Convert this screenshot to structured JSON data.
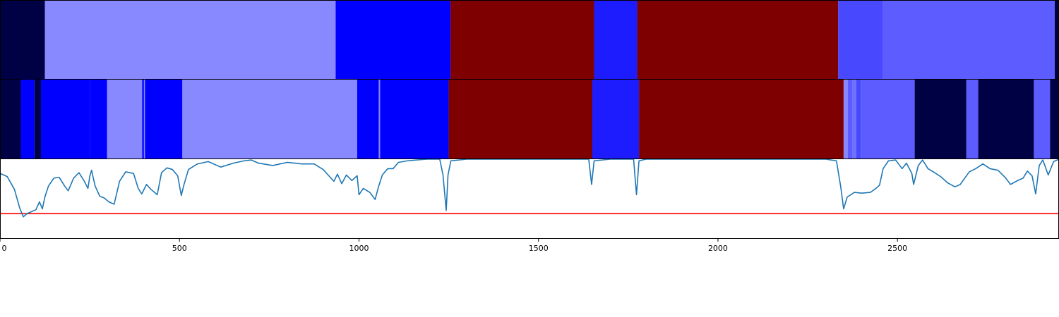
{
  "chart_data": [
    {
      "type": "heatmap",
      "panel": "top-strip",
      "xlim": [
        0,
        2950
      ],
      "segments": [
        {
          "start": 0,
          "end": 125,
          "color": "#000045"
        },
        {
          "start": 125,
          "end": 935,
          "color": "#8888ff"
        },
        {
          "start": 935,
          "end": 1255,
          "color": "#0000ff"
        },
        {
          "start": 1255,
          "end": 1655,
          "color": "#7f0000"
        },
        {
          "start": 1655,
          "end": 1775,
          "color": "#1c1cff"
        },
        {
          "start": 1775,
          "end": 2335,
          "color": "#7f0000"
        },
        {
          "start": 2335,
          "end": 2460,
          "color": "#4848ff"
        },
        {
          "start": 2460,
          "end": 2938,
          "color": "#5c5cff"
        },
        {
          "start": 2938,
          "end": 2950,
          "color": "#000045"
        }
      ]
    },
    {
      "type": "heatmap",
      "panel": "middle-strip",
      "xlim": [
        0,
        2950
      ],
      "segments": [
        {
          "start": 0,
          "end": 58,
          "color": "#000045"
        },
        {
          "start": 58,
          "end": 96,
          "color": "#0000ff"
        },
        {
          "start": 96,
          "end": 114,
          "color": "#000045"
        },
        {
          "start": 114,
          "end": 250,
          "color": "#0000ff"
        },
        {
          "start": 250,
          "end": 298,
          "color": "#0000ff"
        },
        {
          "start": 298,
          "end": 396,
          "color": "#8888ff"
        },
        {
          "start": 396,
          "end": 401,
          "color": "#0000ff"
        },
        {
          "start": 401,
          "end": 404,
          "color": "#8888ff"
        },
        {
          "start": 404,
          "end": 508,
          "color": "#0000ff"
        },
        {
          "start": 508,
          "end": 995,
          "color": "#8888ff"
        },
        {
          "start": 995,
          "end": 1055,
          "color": "#0000ff"
        },
        {
          "start": 1055,
          "end": 1059,
          "color": "#8888ff"
        },
        {
          "start": 1059,
          "end": 1250,
          "color": "#0000ff"
        },
        {
          "start": 1250,
          "end": 1650,
          "color": "#7f0000"
        },
        {
          "start": 1650,
          "end": 1780,
          "color": "#1c1cff"
        },
        {
          "start": 1780,
          "end": 2350,
          "color": "#7f0000"
        },
        {
          "start": 2350,
          "end": 2362,
          "color": "#8888ff"
        },
        {
          "start": 2362,
          "end": 2375,
          "color": "#5c5cff"
        },
        {
          "start": 2375,
          "end": 2385,
          "color": "#7070ff"
        },
        {
          "start": 2385,
          "end": 2398,
          "color": "#4848ff"
        },
        {
          "start": 2398,
          "end": 2548,
          "color": "#5c5cff"
        },
        {
          "start": 2548,
          "end": 2692,
          "color": "#000045"
        },
        {
          "start": 2692,
          "end": 2725,
          "color": "#5c5cff"
        },
        {
          "start": 2725,
          "end": 2880,
          "color": "#000045"
        },
        {
          "start": 2880,
          "end": 2925,
          "color": "#5c5cff"
        },
        {
          "start": 2925,
          "end": 2950,
          "color": "#000045"
        }
      ]
    },
    {
      "type": "line",
      "panel": "bottom-line",
      "xlim": [
        0,
        2950
      ],
      "ylim": [
        0,
        1
      ],
      "line_color": "#1f77b4",
      "threshold": {
        "value": 0.31,
        "color": "#ff0000"
      },
      "x_ticks": [
        "0",
        "500",
        "1000",
        "1500",
        "2000",
        "2500"
      ],
      "x_tick_values": [
        0,
        500,
        1000,
        1500,
        2000,
        2500
      ],
      "points": [
        [
          0,
          0.82
        ],
        [
          20,
          0.78
        ],
        [
          40,
          0.62
        ],
        [
          55,
          0.38
        ],
        [
          65,
          0.27
        ],
        [
          75,
          0.31
        ],
        [
          90,
          0.34
        ],
        [
          100,
          0.36
        ],
        [
          110,
          0.46
        ],
        [
          118,
          0.37
        ],
        [
          125,
          0.52
        ],
        [
          135,
          0.66
        ],
        [
          150,
          0.76
        ],
        [
          165,
          0.77
        ],
        [
          180,
          0.66
        ],
        [
          190,
          0.6
        ],
        [
          205,
          0.76
        ],
        [
          220,
          0.83
        ],
        [
          235,
          0.72
        ],
        [
          245,
          0.63
        ],
        [
          250,
          0.78
        ],
        [
          255,
          0.86
        ],
        [
          265,
          0.66
        ],
        [
          278,
          0.53
        ],
        [
          290,
          0.51
        ],
        [
          303,
          0.46
        ],
        [
          318,
          0.43
        ],
        [
          333,
          0.72
        ],
        [
          350,
          0.84
        ],
        [
          372,
          0.82
        ],
        [
          385,
          0.63
        ],
        [
          395,
          0.56
        ],
        [
          408,
          0.68
        ],
        [
          420,
          0.62
        ],
        [
          438,
          0.55
        ],
        [
          450,
          0.83
        ],
        [
          465,
          0.89
        ],
        [
          480,
          0.87
        ],
        [
          495,
          0.79
        ],
        [
          505,
          0.54
        ],
        [
          512,
          0.67
        ],
        [
          525,
          0.87
        ],
        [
          550,
          0.94
        ],
        [
          580,
          0.97
        ],
        [
          615,
          0.9
        ],
        [
          650,
          0.95
        ],
        [
          680,
          0.98
        ],
        [
          700,
          0.99
        ],
        [
          720,
          0.95
        ],
        [
          760,
          0.92
        ],
        [
          800,
          0.96
        ],
        [
          840,
          0.94
        ],
        [
          875,
          0.94
        ],
        [
          900,
          0.87
        ],
        [
          920,
          0.77
        ],
        [
          930,
          0.72
        ],
        [
          940,
          0.81
        ],
        [
          952,
          0.69
        ],
        [
          965,
          0.8
        ],
        [
          980,
          0.73
        ],
        [
          995,
          0.79
        ],
        [
          1000,
          0.55
        ],
        [
          1012,
          0.63
        ],
        [
          1030,
          0.58
        ],
        [
          1045,
          0.49
        ],
        [
          1055,
          0.66
        ],
        [
          1065,
          0.8
        ],
        [
          1080,
          0.88
        ],
        [
          1095,
          0.88
        ],
        [
          1110,
          0.96
        ],
        [
          1135,
          0.98
        ],
        [
          1160,
          0.99
        ],
        [
          1190,
          1.0
        ],
        [
          1225,
          1.0
        ],
        [
          1234,
          0.8
        ],
        [
          1243,
          0.35
        ],
        [
          1248,
          0.8
        ],
        [
          1256,
          0.98
        ],
        [
          1300,
          1.0
        ],
        [
          1400,
          1.0
        ],
        [
          1500,
          1.0
        ],
        [
          1600,
          1.0
        ],
        [
          1640,
          1.0
        ],
        [
          1648,
          0.68
        ],
        [
          1655,
          0.98
        ],
        [
          1700,
          1.0
        ],
        [
          1765,
          1.0
        ],
        [
          1773,
          0.55
        ],
        [
          1780,
          0.98
        ],
        [
          1800,
          1.0
        ],
        [
          1900,
          1.0
        ],
        [
          2000,
          1.0
        ],
        [
          2100,
          1.0
        ],
        [
          2200,
          1.0
        ],
        [
          2300,
          1.0
        ],
        [
          2330,
          0.98
        ],
        [
          2342,
          0.65
        ],
        [
          2350,
          0.37
        ],
        [
          2360,
          0.52
        ],
        [
          2380,
          0.58
        ],
        [
          2400,
          0.57
        ],
        [
          2425,
          0.58
        ],
        [
          2440,
          0.63
        ],
        [
          2450,
          0.67
        ],
        [
          2460,
          0.88
        ],
        [
          2475,
          0.98
        ],
        [
          2495,
          0.99
        ],
        [
          2513,
          0.88
        ],
        [
          2525,
          0.95
        ],
        [
          2540,
          0.82
        ],
        [
          2545,
          0.68
        ],
        [
          2558,
          0.92
        ],
        [
          2570,
          0.99
        ],
        [
          2585,
          0.88
        ],
        [
          2600,
          0.84
        ],
        [
          2620,
          0.78
        ],
        [
          2640,
          0.7
        ],
        [
          2660,
          0.65
        ],
        [
          2675,
          0.68
        ],
        [
          2700,
          0.84
        ],
        [
          2718,
          0.88
        ],
        [
          2738,
          0.94
        ],
        [
          2758,
          0.88
        ],
        [
          2780,
          0.86
        ],
        [
          2800,
          0.77
        ],
        [
          2815,
          0.68
        ],
        [
          2835,
          0.73
        ],
        [
          2850,
          0.76
        ],
        [
          2862,
          0.85
        ],
        [
          2875,
          0.79
        ],
        [
          2885,
          0.56
        ],
        [
          2895,
          0.92
        ],
        [
          2905,
          0.99
        ],
        [
          2920,
          0.8
        ],
        [
          2935,
          0.97
        ],
        [
          2950,
          1.0
        ]
      ]
    }
  ]
}
